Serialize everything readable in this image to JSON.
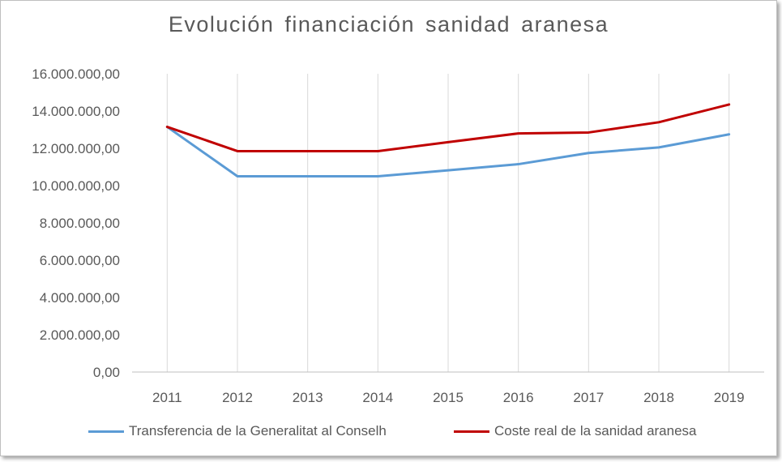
{
  "chart_data": {
    "type": "line",
    "title": "Evolución financiación sanidad aranesa",
    "xlabel": "",
    "ylabel": "",
    "categories": [
      "2011",
      "2012",
      "2013",
      "2014",
      "2015",
      "2016",
      "2017",
      "2018",
      "2019"
    ],
    "ylim": [
      0,
      16000000
    ],
    "yticks": [
      "0,00",
      "2.000.000,00",
      "4.000.000,00",
      "6.000.000,00",
      "8.000.000,00",
      "10.000.000,00",
      "12.000.000,00",
      "14.000.000,00",
      "16.000.000,00"
    ],
    "grid": "vertical",
    "legend": "bottom",
    "series": [
      {
        "name": "Transferencia de la Generalitat al Conselh",
        "color": "#5b9bd5",
        "values": [
          13150000,
          10500000,
          10500000,
          10500000,
          10820000,
          11150000,
          11750000,
          12050000,
          12750000
        ]
      },
      {
        "name": "Coste real de la sanidad aranesa",
        "color": "#c00000",
        "values": [
          13150000,
          11850000,
          11850000,
          11850000,
          12330000,
          12800000,
          12850000,
          13400000,
          14350000
        ]
      }
    ]
  }
}
